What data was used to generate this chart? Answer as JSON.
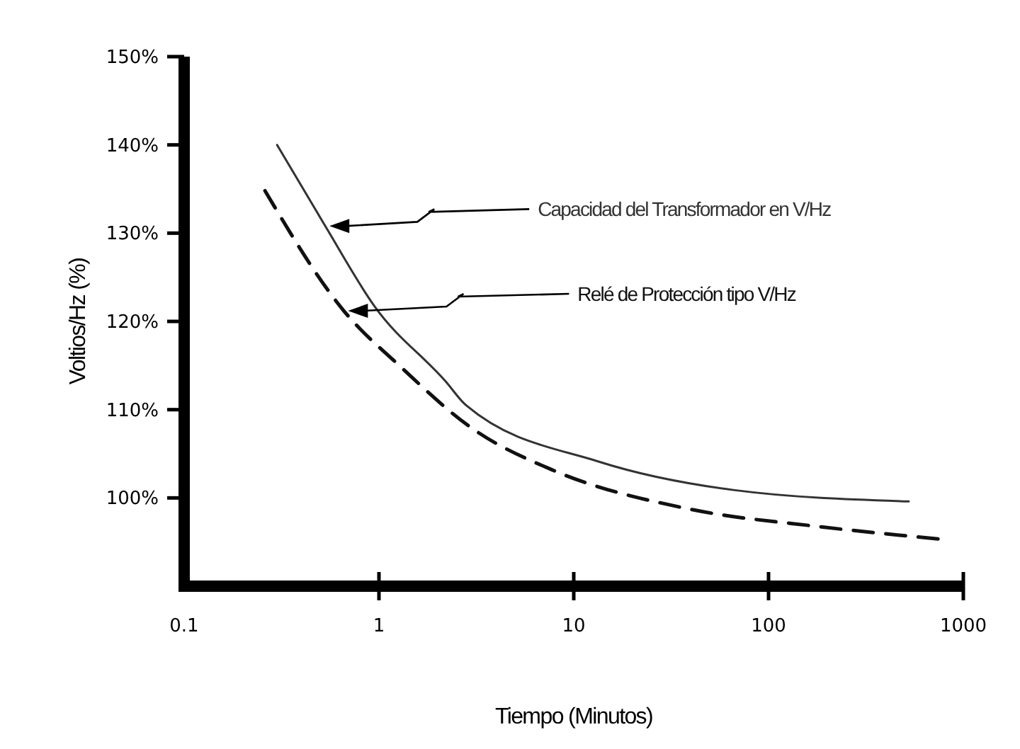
{
  "chart_data": {
    "type": "line",
    "xlabel": "Tiempo (Minutos)",
    "ylabel": "Voltios/Hz (%)",
    "log": "x",
    "grid": false,
    "xlim": [
      0.1,
      1000
    ],
    "xticks": [
      0.1,
      1,
      10,
      100,
      1000
    ],
    "ylim": [
      90,
      150
    ],
    "yticks": [
      {
        "value": 100,
        "label": "100%"
      },
      {
        "value": 110,
        "label": "110%"
      },
      {
        "value": 120,
        "label": "120%"
      },
      {
        "value": 130,
        "label": "130%"
      },
      {
        "value": 140,
        "label": "140%"
      },
      {
        "value": 150,
        "label": "150%"
      }
    ],
    "series": [
      {
        "name": "Capacidad del Transformador en V/Hz",
        "color": "#333333",
        "line_style": "solid",
        "x": [
          0.3,
          0.53,
          0.95,
          2.2,
          2.8,
          13.5,
          66,
          525
        ],
        "values": [
          140,
          130.8,
          121.7,
          113.2,
          110.5,
          104.1,
          100.9,
          99.6
        ]
      },
      {
        "name": "Relé de Protección tipo V/Hz",
        "color": "#111111",
        "line_style": "dashed",
        "x": [
          0.26,
          0.66,
          1.3,
          3,
          7.9,
          38,
          190,
          790
        ],
        "values": [
          134.8,
          121.2,
          114.8,
          107.9,
          103.1,
          98.8,
          96.7,
          95.3
        ]
      }
    ]
  }
}
